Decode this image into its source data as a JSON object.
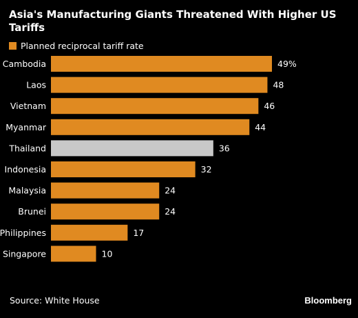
{
  "title": "Asia's Manufacturing Giants Threatened With Higher US Tariffs",
  "legend": {
    "label": "Planned reciprocal tariff rate",
    "color": "#e08a21"
  },
  "source": "Source: White House",
  "brand": "Bloomberg",
  "chart_data": {
    "type": "bar",
    "orientation": "horizontal",
    "categories": [
      "Cambodia",
      "Laos",
      "Vietnam",
      "Myanmar",
      "Thailand",
      "Indonesia",
      "Malaysia",
      "Brunei",
      "Philippines",
      "Singapore"
    ],
    "series": [
      {
        "name": "Planned reciprocal tariff rate",
        "values": [
          49,
          48,
          46,
          44,
          36,
          32,
          24,
          24,
          17,
          10
        ]
      }
    ],
    "data_labels": [
      "49%",
      "48",
      "46",
      "44",
      "36",
      "32",
      "24",
      "24",
      "17",
      "10"
    ],
    "colors": {
      "default": "#e08a21",
      "highlight": "#c8c8c8"
    },
    "highlight_index": 4,
    "xlim": [
      0,
      49
    ],
    "grid": false,
    "legend_position": "top-left"
  }
}
